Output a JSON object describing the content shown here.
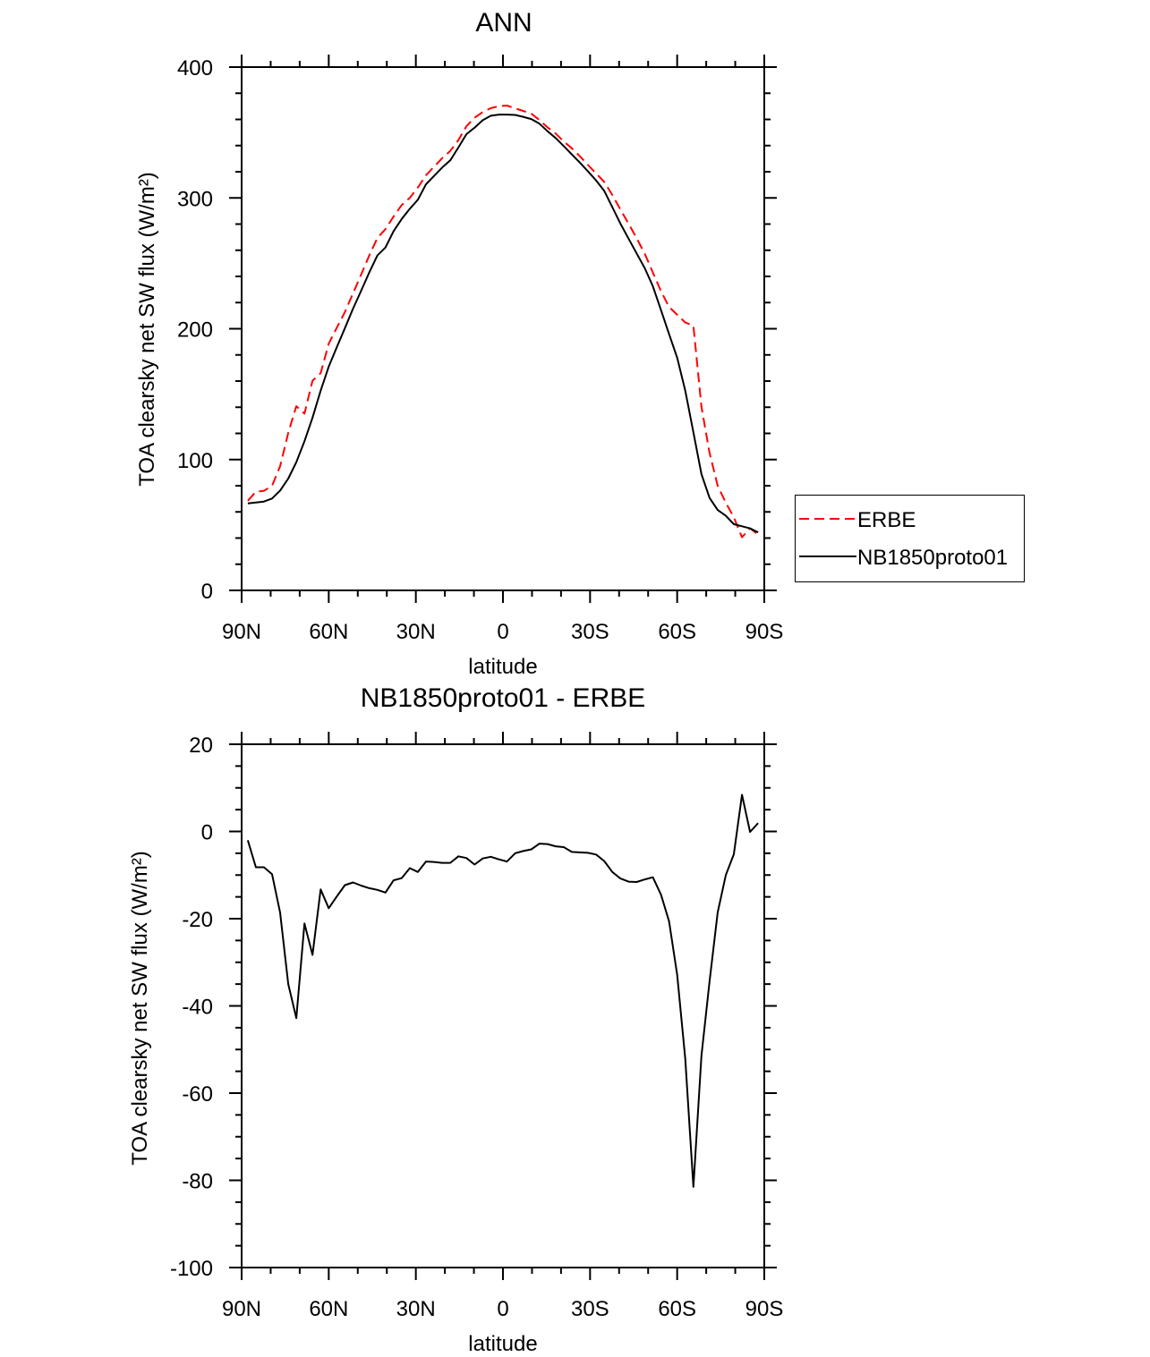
{
  "chart_data": [
    {
      "type": "line",
      "title": "ANN",
      "xlabel": "latitude",
      "ylabel": "TOA clearsky net SW flux (W/m²)",
      "xlim": [
        90,
        -90
      ],
      "ylim": [
        0,
        400
      ],
      "xticks": [
        90,
        60,
        30,
        0,
        -30,
        -60,
        -90
      ],
      "xtick_labels": [
        "90N",
        "60N",
        "30N",
        "0",
        "30S",
        "60S",
        "90S"
      ],
      "yticks": [
        0,
        100,
        200,
        300,
        400
      ],
      "ytick_labels": [
        "0",
        "100",
        "200",
        "300",
        "400"
      ],
      "legend": {
        "placement": "right",
        "entries": [
          "ERBE",
          "NB1850proto01"
        ]
      },
      "grid": false,
      "series": [
        {
          "name": "ERBE",
          "color": "#ff0000",
          "style": "dashed",
          "values": [
            68.5,
            75.4,
            76.1,
            80.0,
            94.9,
            120.5,
            140.8,
            135.1,
            160.3,
            166.0,
            188.6,
            200.9,
            212.8,
            227.1,
            241.4,
            256.0,
            269.4,
            276.1,
            285.8,
            294.5,
            300.1,
            307.9,
            317.3,
            323.8,
            330.4,
            335.9,
            344.2,
            354.8,
            361.3,
            365.6,
            368.6,
            370.1,
            370.6,
            368.4,
            366.5,
            364.4,
            359.5,
            353.9,
            349.2,
            343.2,
            337.9,
            331.8,
            325.1,
            318.7,
            312.2,
            302.2,
            291.1,
            280.4,
            269.2,
            257.2,
            243.0,
            228.7,
            216.6,
            210.7,
            204.8,
            202.3,
            140.3,
            104.9,
            80.1,
            67.0,
            55.8,
            40.6,
            47.5,
            42.5
          ]
        },
        {
          "name": "NB1850proto01",
          "color": "#000000",
          "style": "solid",
          "values": [
            66.5,
            67.2,
            67.9,
            70.2,
            76.3,
            85.5,
            98,
            114,
            132,
            152.7,
            171,
            186,
            200.5,
            215.4,
            229,
            243,
            256,
            262.1,
            274.6,
            283.8,
            291.7,
            298.6,
            310.4,
            316.8,
            323.2,
            328.7,
            338.5,
            348.7,
            353.7,
            359.4,
            362.8,
            363.7,
            363.7,
            363.4,
            362,
            360.3,
            356.7,
            351,
            345.8,
            339.6,
            333.2,
            327,
            320.2,
            313.4,
            305.4,
            292.9,
            280.3,
            268.9,
            257.6,
            246.2,
            232.5,
            214.2,
            196,
            177.8,
            152.7,
            120.8,
            88.9,
            70.6,
            61.5,
            57,
            50.6,
            49,
            47.4,
            44.4
          ]
        }
      ]
    },
    {
      "type": "line",
      "title": "NB1850proto01 - ERBE",
      "xlabel": "latitude",
      "ylabel": "TOA clearsky net SW flux (W/m²)",
      "xlim": [
        90,
        -90
      ],
      "ylim": [
        -100,
        20
      ],
      "xticks": [
        90,
        60,
        30,
        0,
        -30,
        -60,
        -90
      ],
      "xtick_labels": [
        "90N",
        "60N",
        "30N",
        "0",
        "30S",
        "60S",
        "90S"
      ],
      "yticks": [
        -100,
        -80,
        -60,
        -40,
        -20,
        0,
        20
      ],
      "ytick_labels": [
        "-100",
        "-80",
        "-60",
        "-40",
        "-20",
        "0",
        "20"
      ],
      "grid": false,
      "series": [
        {
          "name": "NB1850proto01 - ERBE",
          "color": "#000000",
          "style": "solid",
          "values": [
            -2.0,
            -8.2,
            -8.2,
            -9.8,
            -18.6,
            -35,
            -42.8,
            -21.1,
            -28.3,
            -13.3,
            -17.6,
            -14.9,
            -12.3,
            -11.7,
            -12.4,
            -13.0,
            -13.4,
            -14.0,
            -11.2,
            -10.7,
            -8.4,
            -9.3,
            -6.9,
            -7.0,
            -7.2,
            -7.2,
            -5.7,
            -6.1,
            -7.6,
            -6.2,
            -5.8,
            -6.4,
            -6.9,
            -5.0,
            -4.5,
            -4.1,
            -2.8,
            -2.9,
            -3.4,
            -3.6,
            -4.7,
            -4.8,
            -4.9,
            -5.3,
            -6.8,
            -9.3,
            -10.8,
            -11.5,
            -11.6,
            -11.0,
            -10.5,
            -14.5,
            -20.6,
            -32.9,
            -52.1,
            -81.5,
            -51.4,
            -34.3,
            -18.6,
            -10.0,
            -5.2,
            8.4,
            -0.1,
            1.9
          ]
        }
      ]
    }
  ],
  "lat": [
    87.86,
    85.1,
    82.31,
    79.53,
    76.74,
    73.95,
    71.16,
    68.37,
    65.58,
    62.79,
    60.0,
    57.21,
    54.42,
    51.63,
    48.84,
    46.04,
    43.25,
    40.46,
    37.67,
    34.88,
    32.09,
    29.3,
    26.51,
    23.72,
    20.93,
    18.14,
    15.35,
    12.56,
    9.77,
    6.98,
    4.19,
    1.4,
    -1.4,
    -4.19,
    -6.98,
    -9.77,
    -12.56,
    -15.35,
    -18.14,
    -20.93,
    -23.72,
    -26.51,
    -29.3,
    -32.09,
    -34.88,
    -37.67,
    -40.46,
    -43.25,
    -46.04,
    -48.84,
    -51.63,
    -54.42,
    -57.21,
    -60.0,
    -62.79,
    -65.58,
    -68.37,
    -71.16,
    -73.95,
    -76.74,
    -79.53,
    -82.31,
    -85.1,
    -87.86
  ]
}
